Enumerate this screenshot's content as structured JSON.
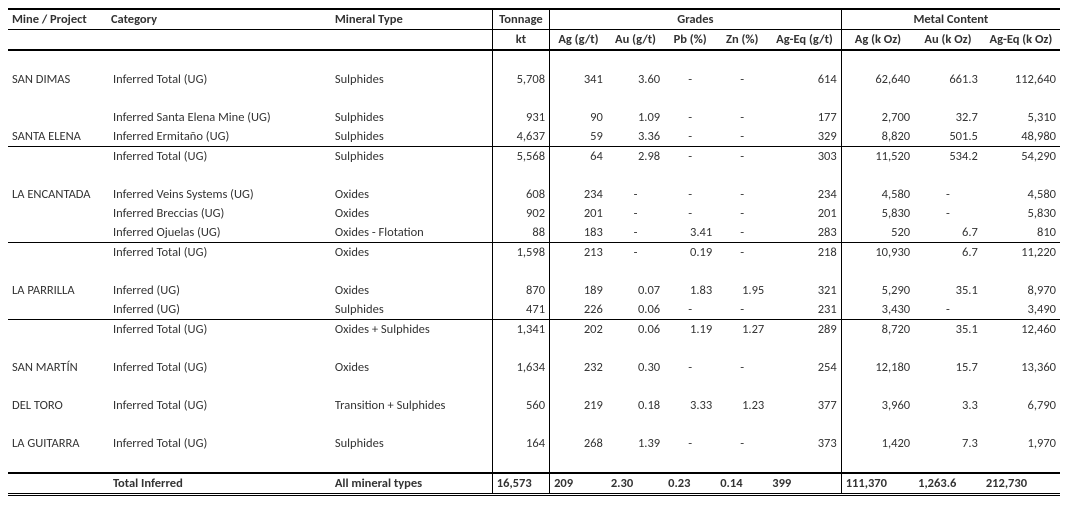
{
  "headers": {
    "mine": "Mine / Project",
    "category": "Category",
    "mineral": "Mineral Type",
    "tonnage": "Tonnage",
    "tonnage_unit": "kt",
    "grades": "Grades",
    "metal": "Metal Content",
    "ag": "Ag (g/t)",
    "au": "Au (g/t)",
    "pb": "Pb (%)",
    "zn": "Zn (%)",
    "ageq": "Ag-Eq (g/t)",
    "agoz": "Ag (k Oz)",
    "auoz": "Au (k Oz)",
    "ageqoz": "Ag-Eq (k Oz)"
  },
  "dash": "-",
  "rows": [
    {
      "type": "spacer"
    },
    {
      "type": "data",
      "mine": "SAN DIMAS",
      "cat": "Inferred Total (UG)",
      "min": "Sulphides",
      "ton": "5,708",
      "ag": "341",
      "au": "3.60",
      "pb": "-",
      "zn": "-",
      "ageq": "614",
      "agoz": "62,640",
      "auoz": "661.3",
      "ageqoz": "112,640"
    },
    {
      "type": "spacer"
    },
    {
      "type": "data",
      "mine": "",
      "cat": "Inferred Santa Elena Mine (UG)",
      "min": "Sulphides",
      "ton": "931",
      "ag": "90",
      "au": "1.09",
      "pb": "-",
      "zn": "-",
      "ageq": "177",
      "agoz": "2,700",
      "auoz": "32.7",
      "ageqoz": "5,310"
    },
    {
      "type": "data",
      "mine": "SANTA ELENA",
      "cat": "Inferred Ermitaño (UG)",
      "min": "Sulphides",
      "ton": "4,637",
      "ag": "59",
      "au": "3.36",
      "pb": "-",
      "zn": "-",
      "ageq": "329",
      "agoz": "8,820",
      "auoz": "501.5",
      "ageqoz": "48,980"
    },
    {
      "type": "data",
      "line": true,
      "mine": "",
      "cat": "Inferred Total (UG)",
      "min": "Sulphides",
      "ton": "5,568",
      "ag": "64",
      "au": "2.98",
      "pb": "-",
      "zn": "-",
      "ageq": "303",
      "agoz": "11,520",
      "auoz": "534.2",
      "ageqoz": "54,290"
    },
    {
      "type": "spacer"
    },
    {
      "type": "data",
      "mine": "LA ENCANTADA",
      "cat": "Inferred Veins Systems (UG)",
      "min": "Oxides",
      "ton": "608",
      "ag": "234",
      "au": "-",
      "pb": "-",
      "zn": "-",
      "ageq": "234",
      "agoz": "4,580",
      "auoz": "-",
      "ageqoz": "4,580"
    },
    {
      "type": "data",
      "mine": "",
      "cat": "Inferred Breccias (UG)",
      "min": "Oxides",
      "ton": "902",
      "ag": "201",
      "au": "-",
      "pb": "-",
      "zn": "-",
      "ageq": "201",
      "agoz": "5,830",
      "auoz": "-",
      "ageqoz": "5,830"
    },
    {
      "type": "data",
      "mine": "",
      "cat": "Inferred Ojuelas (UG)",
      "min": "Oxides - Flotation",
      "ton": "88",
      "ag": "183",
      "au": "-",
      "pb": "3.41",
      "zn": "-",
      "ageq": "283",
      "agoz": "520",
      "auoz": "6.7",
      "ageqoz": "810"
    },
    {
      "type": "data",
      "line": true,
      "mine": "",
      "cat": "Inferred Total (UG)",
      "min": "Oxides",
      "ton": "1,598",
      "ag": "213",
      "au": "-",
      "pb": "0.19",
      "zn": "-",
      "ageq": "218",
      "agoz": "10,930",
      "auoz": "6.7",
      "ageqoz": "11,220"
    },
    {
      "type": "spacer"
    },
    {
      "type": "data",
      "mine": "LA PARRILLA",
      "cat": "Inferred (UG)",
      "min": "Oxides",
      "ton": "870",
      "ag": "189",
      "au": "0.07",
      "pb": "1.83",
      "zn": "1.95",
      "ageq": "321",
      "agoz": "5,290",
      "auoz": "35.1",
      "ageqoz": "8,970"
    },
    {
      "type": "data",
      "mine": "",
      "cat": "Inferred (UG)",
      "min": "Sulphides",
      "ton": "471",
      "ag": "226",
      "au": "0.06",
      "pb": "-",
      "zn": "-",
      "ageq": "231",
      "agoz": "3,430",
      "auoz": "-",
      "ageqoz": "3,490"
    },
    {
      "type": "data",
      "line": true,
      "mine": "",
      "cat": "Inferred Total (UG)",
      "min": "Oxides + Sulphides",
      "ton": "1,341",
      "ag": "202",
      "au": "0.06",
      "pb": "1.19",
      "zn": "1.27",
      "ageq": "289",
      "agoz": "8,720",
      "auoz": "35.1",
      "ageqoz": "12,460"
    },
    {
      "type": "spacer"
    },
    {
      "type": "data",
      "mine": "SAN MARTÍN",
      "cat": "Inferred Total (UG)",
      "min": "Oxides",
      "ton": "1,634",
      "ag": "232",
      "au": "0.30",
      "pb": "-",
      "zn": "-",
      "ageq": "254",
      "agoz": "12,180",
      "auoz": "15.7",
      "ageqoz": "13,360"
    },
    {
      "type": "spacer"
    },
    {
      "type": "data",
      "mine": "DEL TORO",
      "cat": "Inferred Total (UG)",
      "min": "Transition + Sulphides",
      "ton": "560",
      "ag": "219",
      "au": "0.18",
      "pb": "3.33",
      "zn": "1.23",
      "ageq": "377",
      "agoz": "3,960",
      "auoz": "3.3",
      "ageqoz": "6,790"
    },
    {
      "type": "spacer"
    },
    {
      "type": "data",
      "mine": "LA GUITARRA",
      "cat": "Inferred Total (UG)",
      "min": "Sulphides",
      "ton": "164",
      "ag": "268",
      "au": "1.39",
      "pb": "-",
      "zn": "-",
      "ageq": "373",
      "agoz": "1,420",
      "auoz": "7.3",
      "ageqoz": "1,970"
    },
    {
      "type": "spacer"
    }
  ],
  "total": {
    "cat": "Total Inferred",
    "min": "All mineral types",
    "ton": "16,573",
    "ag": "209",
    "au": "2.30",
    "pb": "0.23",
    "zn": "0.14",
    "ageq": "399",
    "agoz": "111,370",
    "auoz": "1,263.6",
    "ageqoz": "212,730"
  }
}
